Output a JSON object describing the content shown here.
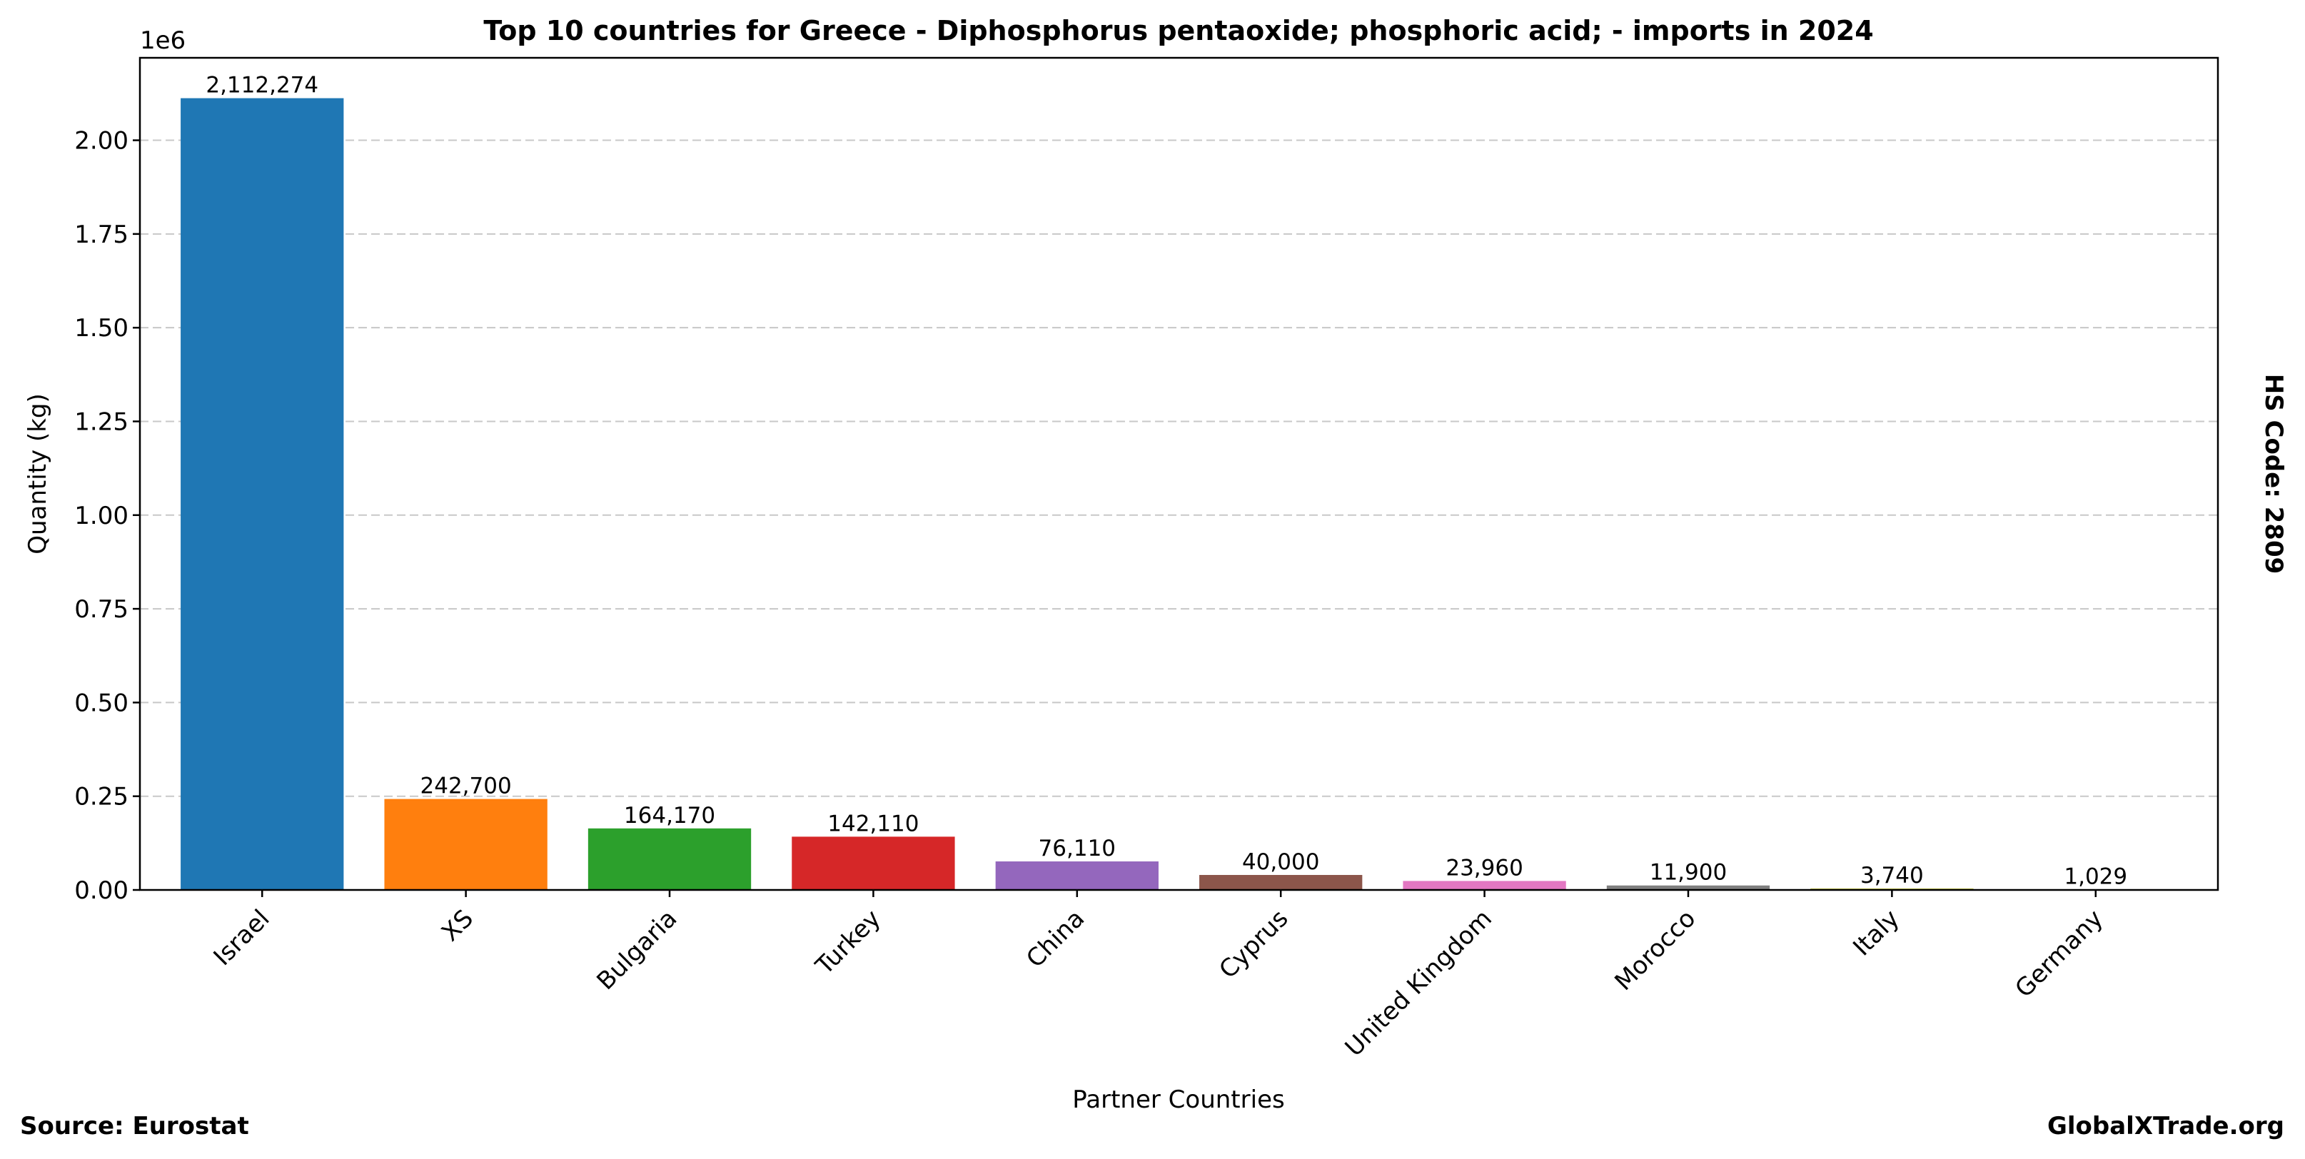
{
  "chart_data": {
    "type": "bar",
    "title": "Top 10 countries for Greece - Diphosphorus pentaoxide; phosphoric acid; - imports in 2024",
    "xlabel": "Partner Countries",
    "ylabel": "Quantity (kg)",
    "y_offset_label": "1e6",
    "ylim": [
      0,
      2220000
    ],
    "yticks": [
      0,
      250000,
      500000,
      750000,
      1000000,
      1250000,
      1500000,
      1750000,
      2000000
    ],
    "ytick_labels": [
      "0.00",
      "0.25",
      "0.50",
      "0.75",
      "1.00",
      "1.25",
      "1.50",
      "1.75",
      "2.00"
    ],
    "grid": "horizontal dashed",
    "categories": [
      "Israel",
      "XS",
      "Bulgaria",
      "Turkey",
      "China",
      "Cyprus",
      "United Kingdom",
      "Morocco",
      "Italy",
      "Germany"
    ],
    "values": [
      2112274,
      242700,
      164170,
      142110,
      76110,
      40000,
      23960,
      11900,
      3740,
      1029
    ],
    "value_labels": [
      "2,112,274",
      "242,700",
      "164,170",
      "142,110",
      "76,110",
      "40,000",
      "23,960",
      "11,900",
      "3,740",
      "1,029"
    ],
    "colors": [
      "#1f77b4",
      "#ff7f0e",
      "#2ca02c",
      "#d62728",
      "#9467bd",
      "#8c564b",
      "#e377c2",
      "#7f7f7f",
      "#bcbd22",
      "#17becf"
    ],
    "side_note": "HS Code: 2809",
    "source": "Source: Eurostat",
    "watermark": "GlobalXTrade.org"
  }
}
